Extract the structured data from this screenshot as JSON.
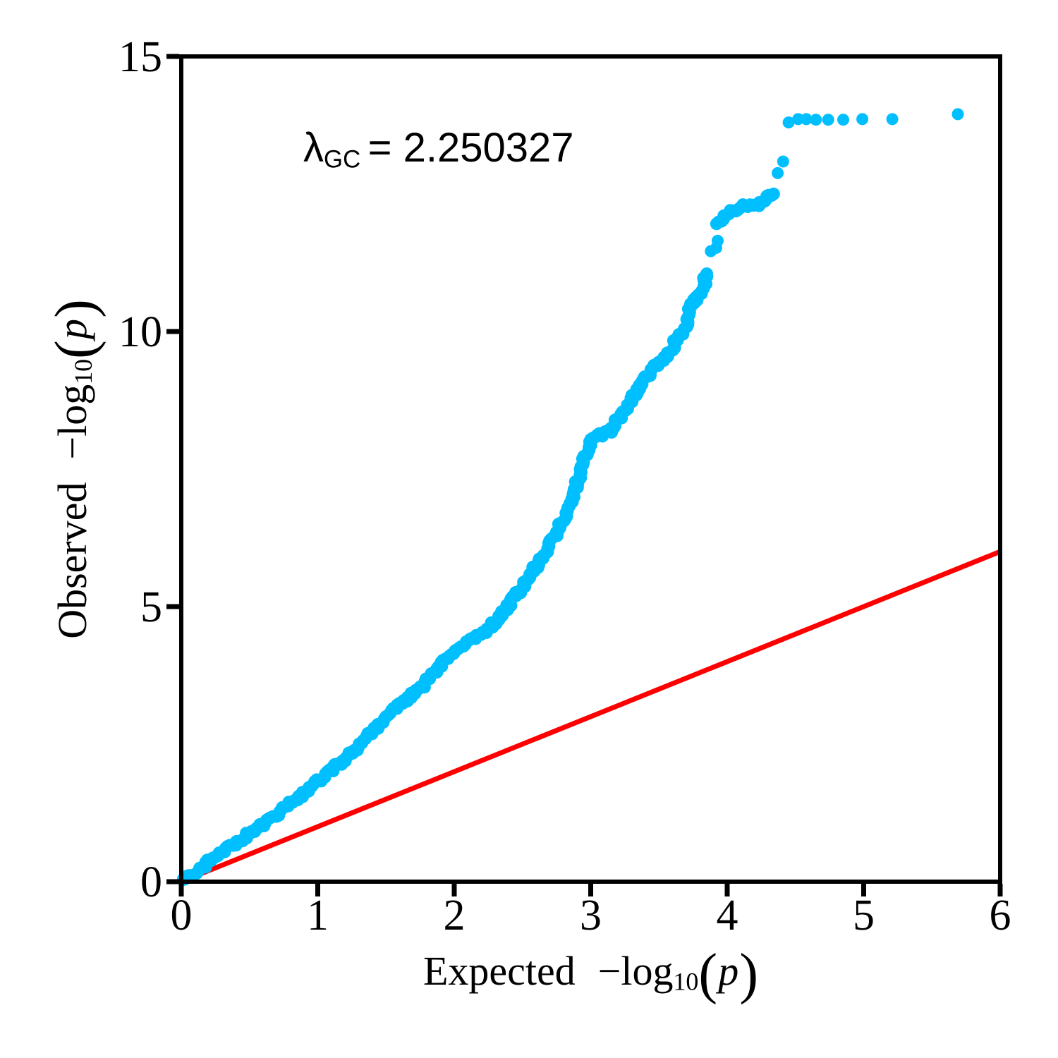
{
  "figure": {
    "kind": "qq-plot",
    "background": "#ffffff"
  },
  "annotation": {
    "symbol": "λ",
    "subscript": "GC",
    "equals_value": "= 2.250327"
  },
  "axes": {
    "x": {
      "title": {
        "word": "Expected",
        "func": "−log",
        "base": "10",
        "open": "(",
        "arg": "p",
        "close": ")"
      },
      "ticks": [
        0,
        1,
        2,
        3,
        4,
        5,
        6
      ],
      "range": [
        0,
        6
      ]
    },
    "y": {
      "title": {
        "word": "Observed",
        "func": "−log",
        "base": "10",
        "open": "(",
        "arg": "p",
        "close": ")"
      },
      "ticks": [
        0,
        5,
        10,
        15
      ],
      "range": [
        0,
        15
      ]
    }
  },
  "chart_data": {
    "type": "scatter",
    "title": "",
    "xlabel": "Expected −log10(p)",
    "ylabel": "Observed −log10(p)",
    "xlim": [
      0,
      6
    ],
    "ylim": [
      0,
      15
    ],
    "x_ticks": [
      0,
      1,
      2,
      3,
      4,
      5,
      6
    ],
    "y_ticks": [
      0,
      5,
      10,
      15
    ],
    "grid": false,
    "legend": "none",
    "lambda_gc": 2.250327,
    "point_color": "#00BFFF",
    "axis_color": "#000000",
    "identity_line": {
      "from": [
        0,
        0
      ],
      "to": [
        6,
        6
      ],
      "color": "#FF0000",
      "width": 7
    },
    "series": [
      {
        "name": "observed-quantiles-dense-band",
        "kind": "dense-band",
        "anchors": [
          [
            0.0,
            0.0
          ],
          [
            0.12,
            0.21
          ],
          [
            0.25,
            0.45
          ],
          [
            0.38,
            0.66
          ],
          [
            0.5,
            0.88
          ],
          [
            0.63,
            1.1
          ],
          [
            0.75,
            1.32
          ],
          [
            0.88,
            1.57
          ],
          [
            1.0,
            1.83
          ],
          [
            1.12,
            2.07
          ],
          [
            1.25,
            2.35
          ],
          [
            1.35,
            2.6
          ],
          [
            1.46,
            2.88
          ],
          [
            1.58,
            3.15
          ],
          [
            1.68,
            3.36
          ],
          [
            1.77,
            3.56
          ],
          [
            1.85,
            3.8
          ],
          [
            1.94,
            4.03
          ],
          [
            2.01,
            4.18
          ],
          [
            2.08,
            4.31
          ],
          [
            2.14,
            4.4
          ],
          [
            2.2,
            4.48
          ],
          [
            2.27,
            4.65
          ],
          [
            2.33,
            4.82
          ],
          [
            2.44,
            5.16
          ],
          [
            2.55,
            5.54
          ],
          [
            2.61,
            5.77
          ],
          [
            2.67,
            6.02
          ],
          [
            2.72,
            6.22
          ],
          [
            2.77,
            6.44
          ],
          [
            2.83,
            6.74
          ],
          [
            2.87,
            6.95
          ],
          [
            2.9,
            7.26
          ],
          [
            2.96,
            7.72
          ],
          [
            3.0,
            8.04
          ],
          [
            3.05,
            8.1
          ],
          [
            3.1,
            8.13
          ],
          [
            3.14,
            8.19
          ],
          [
            3.2,
            8.41
          ],
          [
            3.27,
            8.66
          ],
          [
            3.32,
            8.87
          ],
          [
            3.38,
            9.09
          ],
          [
            3.44,
            9.25
          ],
          [
            3.5,
            9.43
          ],
          [
            3.55,
            9.51
          ],
          [
            3.62,
            9.81
          ],
          [
            3.69,
            10.05
          ],
          [
            3.72,
            10.3
          ],
          [
            3.75,
            10.54
          ],
          [
            3.78,
            10.62
          ],
          [
            3.82,
            10.79
          ],
          [
            3.85,
            11.05
          ]
        ]
      },
      {
        "name": "observed-quantiles-dense-band-upper",
        "kind": "dense-band",
        "anchors": [
          [
            3.93,
            11.94
          ],
          [
            3.97,
            12.05
          ],
          [
            4.01,
            12.16
          ],
          [
            4.06,
            12.21
          ],
          [
            4.1,
            12.26
          ],
          [
            4.15,
            12.27
          ],
          [
            4.2,
            12.27
          ],
          [
            4.24,
            12.33
          ],
          [
            4.27,
            12.39
          ],
          [
            4.31,
            12.45
          ],
          [
            4.34,
            12.5
          ]
        ]
      },
      {
        "name": "observed-quantiles-top-points",
        "kind": "points",
        "points": [
          [
            3.88,
            11.46
          ],
          [
            3.92,
            11.52
          ],
          [
            3.93,
            11.65
          ],
          [
            4.37,
            12.88
          ],
          [
            4.41,
            13.09
          ],
          [
            4.45,
            13.8
          ],
          [
            4.52,
            13.86
          ],
          [
            4.58,
            13.86
          ],
          [
            4.65,
            13.85
          ],
          [
            4.74,
            13.85
          ],
          [
            4.85,
            13.85
          ],
          [
            4.99,
            13.86
          ],
          [
            5.21,
            13.86
          ],
          [
            5.69,
            13.95
          ]
        ]
      }
    ]
  }
}
